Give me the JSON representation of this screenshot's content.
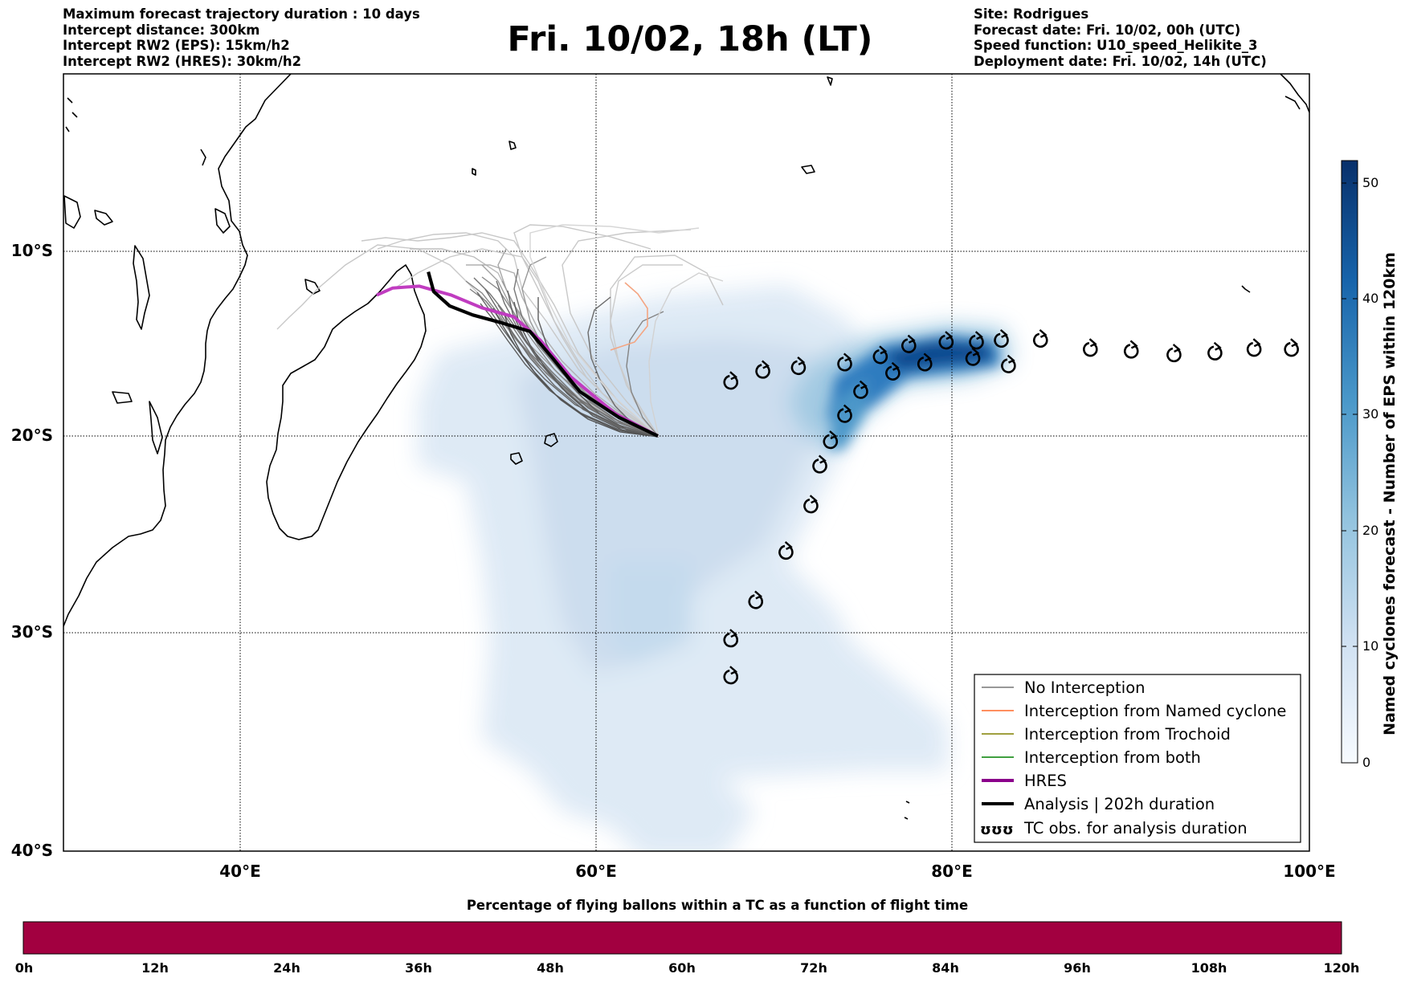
{
  "header": {
    "left_lines": [
      "Maximum forecast trajectory duration : 10 days",
      "Intercept distance: 300km",
      "Intercept RW2 (EPS):  15km/h2",
      "Intercept RW2 (HRES): 30km/h2"
    ],
    "title": "Fri. 10/02, 18h (LT)",
    "right_lines": [
      "Site: Rodrigues",
      "Forecast date: Fri. 10/02, 00h (UTC)",
      "Speed function: U10_speed_Helikite_3",
      "Deployment date: Fri. 10/02, 14h (UTC)"
    ]
  },
  "map": {
    "lat_labels": [
      "10°S",
      "20°S",
      "30°S",
      "40°S"
    ],
    "lon_labels": [
      "40°E",
      "60°E",
      "80°E",
      "100°E"
    ],
    "lon_range": [
      30,
      100
    ],
    "lat_range": [
      0.5,
      -40
    ],
    "launch_site": {
      "lon": 63.4,
      "lat": -19.7
    },
    "hres_track": [
      [
        63.4,
        -19.7
      ],
      [
        61,
        -18.5
      ],
      [
        58.5,
        -16.5
      ],
      [
        56.8,
        -14.5
      ],
      [
        55.3,
        -13.2
      ],
      [
        53.5,
        -12.7
      ],
      [
        51.8,
        -12
      ],
      [
        50,
        -11.5
      ],
      [
        48.5,
        -11.6
      ],
      [
        47.6,
        -12
      ]
    ],
    "analysis_track": [
      [
        63.4,
        -19.7
      ],
      [
        61.2,
        -18.7
      ],
      [
        59,
        -17.3
      ],
      [
        57.5,
        -15.5
      ],
      [
        56.2,
        -14
      ],
      [
        54.5,
        -13.5
      ],
      [
        53,
        -13.1
      ],
      [
        51.7,
        -12.6
      ],
      [
        50.8,
        -11.8
      ],
      [
        50.5,
        -10.7
      ]
    ],
    "tc_obs": [
      [
        67.5,
        -16.8
      ],
      [
        69.3,
        -16.2
      ],
      [
        71.3,
        -16
      ],
      [
        73.9,
        -15.8
      ],
      [
        75.9,
        -15.4
      ],
      [
        77.5,
        -14.8
      ],
      [
        79.6,
        -14.6
      ],
      [
        81.3,
        -14.6
      ],
      [
        82.7,
        -14.5
      ],
      [
        83.1,
        -15.9
      ],
      [
        81.1,
        -15.5
      ],
      [
        78.4,
        -15.8
      ],
      [
        76.6,
        -16.3
      ],
      [
        74.8,
        -17.3
      ],
      [
        73.9,
        -18.6
      ],
      [
        73.1,
        -20
      ],
      [
        72.5,
        -21.3
      ],
      [
        72,
        -23.4
      ],
      [
        70.6,
        -25.8
      ],
      [
        68.9,
        -28.3
      ],
      [
        67.5,
        -30.2
      ],
      [
        67.5,
        -32
      ],
      [
        84.9,
        -14.5
      ],
      [
        87.7,
        -15
      ],
      [
        90,
        -15.1
      ],
      [
        92.4,
        -15.3
      ],
      [
        94.7,
        -15.2
      ],
      [
        96.9,
        -15
      ],
      [
        99,
        -15
      ]
    ],
    "trajectory_categories": [
      "No Interception",
      "Interception from Named cyclone"
    ]
  },
  "colorbar": {
    "label": "Named cyclones forecast - Number of EPS within 120km",
    "ticks": [
      "50",
      "40",
      "30",
      "20",
      "10",
      "0"
    ],
    "range": [
      0,
      52
    ],
    "colors": [
      "#f7fbff",
      "#08306b"
    ]
  },
  "legend": {
    "items": [
      {
        "label": "No Interception",
        "color": "#777777"
      },
      {
        "label": "Interception from Named cyclone",
        "color": "#ff6a2a"
      },
      {
        "label": "Interception from Trochoid",
        "color": "#808000"
      },
      {
        "label": "Interception from both",
        "color": "#008000"
      },
      {
        "label": "HRES",
        "color": "#8b008b"
      },
      {
        "label": "Analysis | 202h duration",
        "color": "#000000"
      },
      {
        "label": "TC obs. for analysis duration",
        "color": "#000000"
      }
    ],
    "tc_symbol_text": "ʊʊʊ"
  },
  "bottom_bar": {
    "title": "Percentage of flying ballons within a TC as a function of flight time",
    "color": "#a20040",
    "ticks": [
      "0h",
      "12h",
      "24h",
      "36h",
      "48h",
      "60h",
      "72h",
      "84h",
      "96h",
      "108h",
      "120h"
    ]
  }
}
